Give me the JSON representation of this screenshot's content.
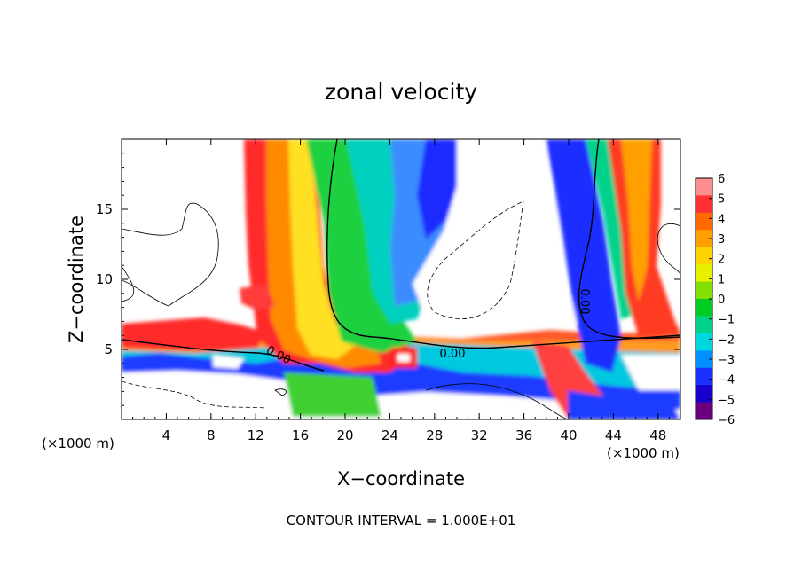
{
  "chart_data": {
    "type": "heatmap",
    "title": "zonal velocity",
    "xlabel": "X−coordinate",
    "ylabel": "Z−coordinate",
    "x_unit_label": "(×1000 m)",
    "footer": "CONTOUR INTERVAL = 1.000E+01",
    "xlim": [
      0,
      50
    ],
    "ylim": [
      0,
      20
    ],
    "x_ticks": [
      4,
      8,
      12,
      16,
      20,
      24,
      28,
      32,
      36,
      40,
      44,
      48
    ],
    "y_ticks": [
      5,
      10,
      15
    ],
    "contour_label": "0.00",
    "colorbar": {
      "ticks": [
        "6",
        "5",
        "4",
        "3",
        "2",
        "1",
        "0",
        "−1",
        "−2",
        "−3",
        "−4",
        "−5",
        "−6"
      ],
      "colors": [
        "#ff8f8f",
        "#ff3030",
        "#ff6a00",
        "#ffa000",
        "#ffd200",
        "#e8f000",
        "#80e000",
        "#00cc22",
        "#00d28c",
        "#00d6e0",
        "#0090ff",
        "#1b2fff",
        "#1700cc",
        "#6a0080"
      ]
    }
  }
}
